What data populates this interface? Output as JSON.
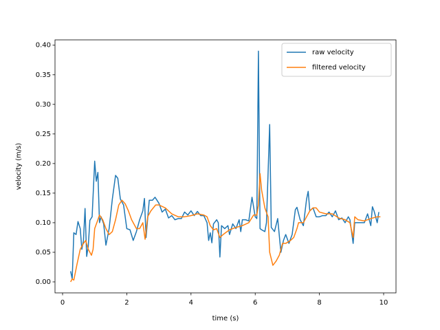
{
  "chart_data": {
    "type": "line",
    "xlabel": "time (s)",
    "ylabel": "velocity (m/s)",
    "xlim": [
      -0.236,
      10.385
    ],
    "ylim": [
      -0.0186,
      0.409
    ],
    "xticks": [
      0,
      2,
      4,
      6,
      8,
      10
    ],
    "yticks": [
      {
        "value": 0,
        "label": "0.00"
      },
      {
        "value": 0.05,
        "label": "0.05"
      },
      {
        "value": 0.1,
        "label": "0.10"
      },
      {
        "value": 0.15,
        "label": "0.15"
      },
      {
        "value": 0.2,
        "label": "0.20"
      },
      {
        "value": 0.25,
        "label": "0.25"
      },
      {
        "value": 0.3,
        "label": "0.30"
      },
      {
        "value": 0.35,
        "label": "0.35"
      },
      {
        "value": 0.4,
        "label": "0.40"
      }
    ],
    "legend": "upper right",
    "series": [
      {
        "name": "raw velocity",
        "color": "#1f77b4",
        "x": [
          0.25,
          0.3,
          0.35,
          0.42,
          0.48,
          0.55,
          0.6,
          0.65,
          0.7,
          0.75,
          0.8,
          0.85,
          0.92,
          1.0,
          1.05,
          1.1,
          1.15,
          1.2,
          1.28,
          1.35,
          1.45,
          1.55,
          1.65,
          1.72,
          1.8,
          1.9,
          2.0,
          2.1,
          2.2,
          2.3,
          2.4,
          2.5,
          2.55,
          2.6,
          2.7,
          2.8,
          2.88,
          3.0,
          3.1,
          3.2,
          3.3,
          3.4,
          3.5,
          3.6,
          3.7,
          3.8,
          3.9,
          4.0,
          4.1,
          4.2,
          4.3,
          4.4,
          4.5,
          4.55,
          4.6,
          4.65,
          4.7,
          4.8,
          4.85,
          4.9,
          4.95,
          5.05,
          5.15,
          5.2,
          5.3,
          5.4,
          5.5,
          5.55,
          5.6,
          5.7,
          5.8,
          5.9,
          6.0,
          6.05,
          6.1,
          6.15,
          6.2,
          6.3,
          6.35,
          6.45,
          6.5,
          6.6,
          6.7,
          6.8,
          6.88,
          6.95,
          7.05,
          7.15,
          7.25,
          7.3,
          7.4,
          7.5,
          7.6,
          7.65,
          7.7,
          7.8,
          7.9,
          8.0,
          8.1,
          8.2,
          8.3,
          8.4,
          8.5,
          8.6,
          8.7,
          8.8,
          8.9,
          8.95,
          9.05,
          9.1,
          9.2,
          9.3,
          9.4,
          9.5,
          9.6,
          9.65,
          9.7,
          9.8,
          9.85
        ],
        "values": [
          0.018,
          0.005,
          0.083,
          0.08,
          0.102,
          0.09,
          0.055,
          0.07,
          0.124,
          0.043,
          0.06,
          0.104,
          0.11,
          0.204,
          0.17,
          0.185,
          0.1,
          0.11,
          0.098,
          0.062,
          0.09,
          0.14,
          0.18,
          0.175,
          0.14,
          0.13,
          0.09,
          0.088,
          0.07,
          0.085,
          0.105,
          0.12,
          0.141,
          0.075,
          0.138,
          0.138,
          0.143,
          0.133,
          0.118,
          0.123,
          0.108,
          0.112,
          0.105,
          0.107,
          0.107,
          0.118,
          0.113,
          0.12,
          0.112,
          0.119,
          0.112,
          0.112,
          0.1,
          0.07,
          0.083,
          0.066,
          0.098,
          0.105,
          0.1,
          0.042,
          0.095,
          0.09,
          0.095,
          0.08,
          0.098,
          0.09,
          0.105,
          0.085,
          0.105,
          0.105,
          0.103,
          0.143,
          0.11,
          0.107,
          0.39,
          0.09,
          0.088,
          0.085,
          0.1,
          0.266,
          0.092,
          0.085,
          0.107,
          0.05,
          0.07,
          0.08,
          0.065,
          0.08,
          0.122,
          0.126,
          0.105,
          0.095,
          0.14,
          0.153,
          0.12,
          0.125,
          0.11,
          0.11,
          0.112,
          0.112,
          0.118,
          0.11,
          0.12,
          0.105,
          0.108,
          0.1,
          0.11,
          0.105,
          0.065,
          0.1,
          0.1,
          0.1,
          0.1,
          0.115,
          0.095,
          0.127,
          0.12,
          0.1,
          0.118
        ]
      },
      {
        "name": "filtered velocity",
        "color": "#ff7f0e",
        "x": [
          0.25,
          0.3,
          0.35,
          0.45,
          0.55,
          0.65,
          0.72,
          0.8,
          0.9,
          0.95,
          1.0,
          1.1,
          1.15,
          1.25,
          1.35,
          1.45,
          1.55,
          1.65,
          1.75,
          1.85,
          1.95,
          2.05,
          2.15,
          2.3,
          2.4,
          2.5,
          2.57,
          2.65,
          2.75,
          2.9,
          3.0,
          3.2,
          3.4,
          3.6,
          3.8,
          4.0,
          4.2,
          4.4,
          4.5,
          4.6,
          4.7,
          4.8,
          4.9,
          5.0,
          5.2,
          5.4,
          5.6,
          5.8,
          5.95,
          6.05,
          6.1,
          6.15,
          6.2,
          6.3,
          6.4,
          6.45,
          6.55,
          6.65,
          6.75,
          6.85,
          6.95,
          7.1,
          7.2,
          7.3,
          7.35,
          7.5,
          7.6,
          7.7,
          7.8,
          7.9,
          8.0,
          8.2,
          8.4,
          8.6,
          8.8,
          8.95,
          9.05,
          9.1,
          9.2,
          9.4,
          9.6,
          9.8,
          9.9
        ],
        "values": [
          0.0,
          0.005,
          0.003,
          0.03,
          0.055,
          0.065,
          0.07,
          0.055,
          0.045,
          0.055,
          0.09,
          0.105,
          0.113,
          0.105,
          0.09,
          0.08,
          0.085,
          0.105,
          0.13,
          0.138,
          0.132,
          0.12,
          0.105,
          0.09,
          0.09,
          0.1,
          0.072,
          0.11,
          0.12,
          0.13,
          0.13,
          0.125,
          0.115,
          0.11,
          0.11,
          0.112,
          0.115,
          0.113,
          0.11,
          0.095,
          0.088,
          0.09,
          0.075,
          0.08,
          0.088,
          0.092,
          0.095,
          0.1,
          0.113,
          0.113,
          0.13,
          0.183,
          0.155,
          0.125,
          0.11,
          0.05,
          0.028,
          0.035,
          0.045,
          0.065,
          0.065,
          0.07,
          0.075,
          0.09,
          0.1,
          0.1,
          0.11,
          0.12,
          0.125,
          0.125,
          0.118,
          0.115,
          0.115,
          0.108,
          0.105,
          0.1,
          0.075,
          0.11,
          0.105,
          0.103,
          0.107,
          0.11,
          0.11
        ]
      }
    ]
  }
}
